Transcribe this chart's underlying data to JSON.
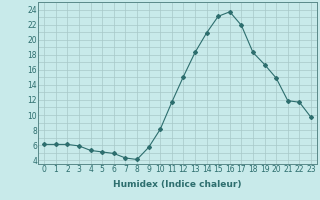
{
  "x": [
    0,
    1,
    2,
    3,
    4,
    5,
    6,
    7,
    8,
    9,
    10,
    11,
    12,
    13,
    14,
    15,
    16,
    17,
    18,
    19,
    20,
    21,
    22,
    23
  ],
  "y": [
    6.1,
    6.1,
    6.1,
    5.9,
    5.3,
    5.1,
    4.9,
    4.3,
    4.1,
    5.7,
    8.1,
    11.7,
    15.1,
    18.3,
    20.9,
    23.1,
    23.7,
    21.9,
    18.3,
    16.7,
    14.9,
    11.9,
    11.7,
    9.7
  ],
  "line_color": "#2d6e6e",
  "marker": "D",
  "marker_size": 2.0,
  "bg_color": "#c8eaea",
  "grid_color": "#a8c8c8",
  "xlabel": "Humidex (Indice chaleur)",
  "xlim": [
    -0.5,
    23.5
  ],
  "ylim": [
    3.5,
    25.0
  ],
  "yticks": [
    4,
    6,
    8,
    10,
    12,
    14,
    16,
    18,
    20,
    22,
    24
  ],
  "xticks": [
    0,
    1,
    2,
    3,
    4,
    5,
    6,
    7,
    8,
    9,
    10,
    11,
    12,
    13,
    14,
    15,
    16,
    17,
    18,
    19,
    20,
    21,
    22,
    23
  ],
  "tick_fontsize": 5.5,
  "label_fontsize": 6.5
}
